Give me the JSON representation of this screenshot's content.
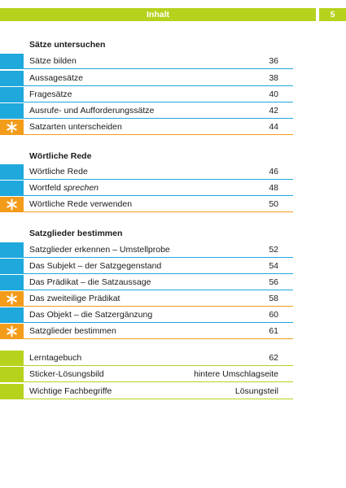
{
  "header": {
    "title": "Inhalt",
    "page_number": "5"
  },
  "colors": {
    "blue": "#1fa8dc",
    "orange": "#f39c1a",
    "green": "#b7d21d"
  },
  "sections": [
    {
      "title": "Sätze untersuchen",
      "rows": [
        {
          "label": "Sätze bilden",
          "page": "36",
          "marker": "blue"
        },
        {
          "label": "Aussagesätze",
          "page": "38",
          "marker": "blue"
        },
        {
          "label": "Fragesätze",
          "page": "40",
          "marker": "blue"
        },
        {
          "label": "Ausrufe- und Aufforderungssätze",
          "page": "42",
          "marker": "blue"
        },
        {
          "label": "Satzarten unterscheiden",
          "page": "44",
          "marker": "orange-star"
        }
      ]
    },
    {
      "title": "Wörtliche Rede",
      "rows": [
        {
          "label": "Wörtliche Rede",
          "page": "46",
          "marker": "blue"
        },
        {
          "label_prefix": "Wortfeld ",
          "label_italic": "sprechen",
          "page": "48",
          "marker": "blue"
        },
        {
          "label": "Wörtliche Rede verwenden",
          "page": "50",
          "marker": "orange-star"
        }
      ]
    },
    {
      "title": "Satzglieder bestimmen",
      "rows": [
        {
          "label": "Satzglieder erkennen – Umstellprobe",
          "page": "52",
          "marker": "blue"
        },
        {
          "label": "Das Subjekt – der Satzgegenstand",
          "page": "54",
          "marker": "blue"
        },
        {
          "label": "Das Prädikat – die Satzaussage",
          "page": "56",
          "marker": "blue"
        },
        {
          "label": "Das zweiteilige Prädikat",
          "page": "58",
          "marker": "orange-star"
        },
        {
          "label": "Das Objekt – die Satzergänzung",
          "page": "60",
          "marker": "blue"
        },
        {
          "label": "Satzglieder bestimmen",
          "page": "61",
          "marker": "orange-star"
        }
      ]
    }
  ],
  "appendix": [
    {
      "label": "Lerntagebuch",
      "page": "62",
      "marker": "green"
    },
    {
      "label": "Sticker-Lösungsbild",
      "page": "hintere Umschlagseite",
      "marker": "green"
    },
    {
      "label": "Wichtige Fachbegriffe",
      "page": "Lösungsteil",
      "marker": "green"
    }
  ]
}
